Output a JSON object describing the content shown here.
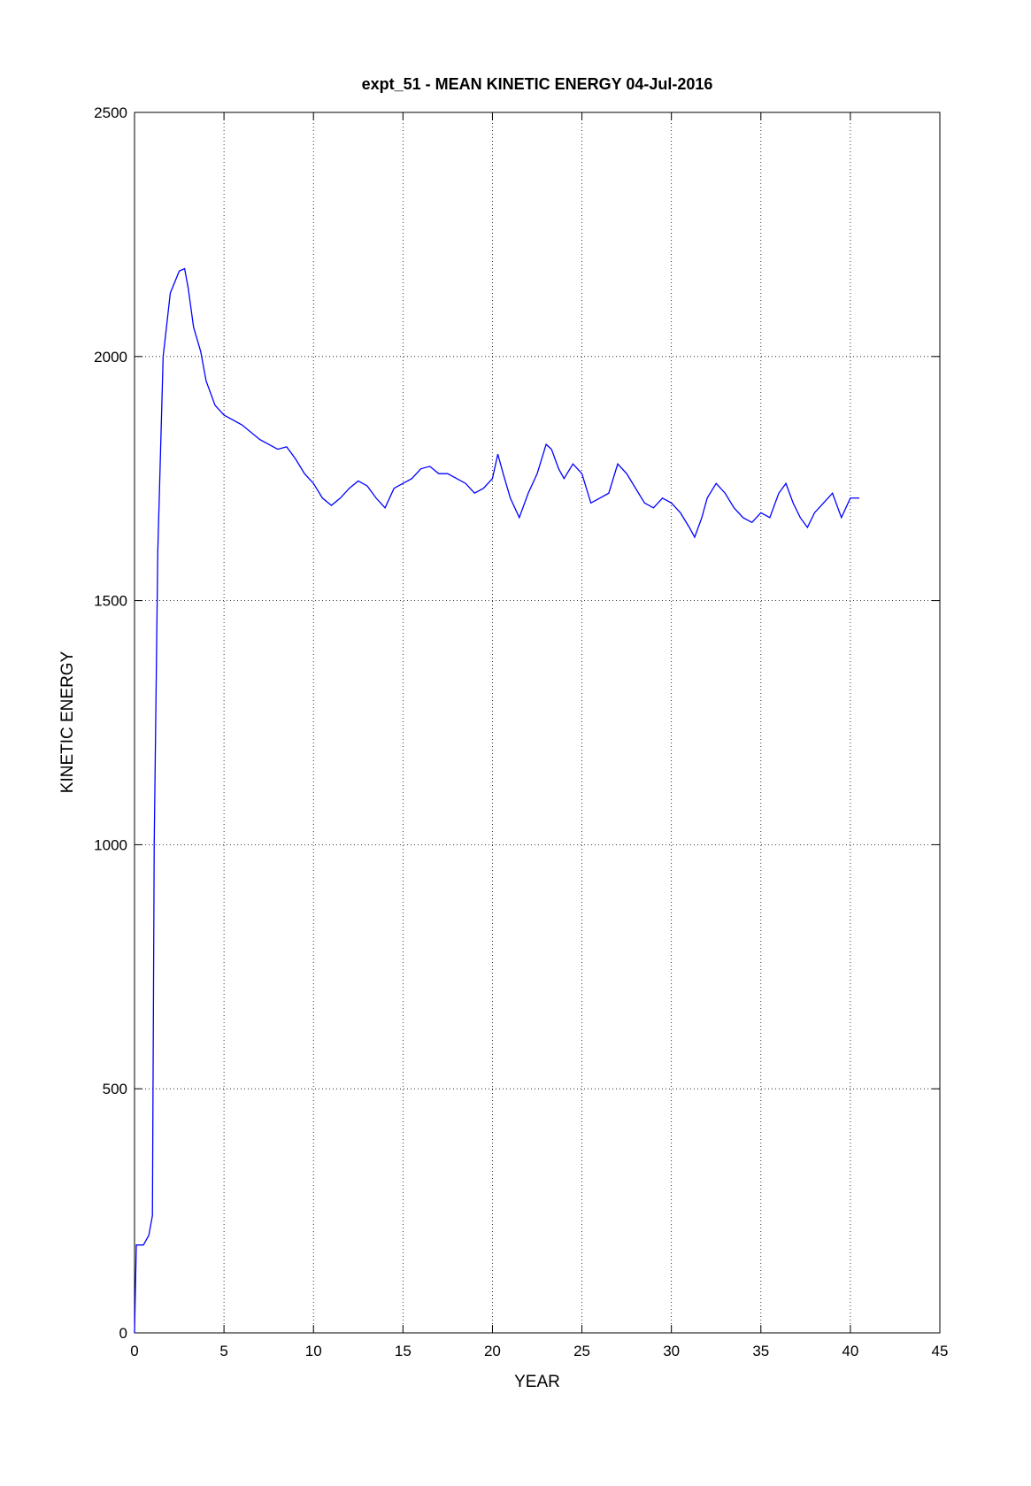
{
  "chart_data": {
    "type": "line",
    "title": "expt_51 - MEAN KINETIC ENERGY 04-Jul-2016",
    "xlabel": "YEAR",
    "ylabel": "KINETIC ENERGY",
    "x": [
      0,
      0.1,
      0.5,
      0.8,
      1.0,
      1.1,
      1.3,
      1.6,
      2.0,
      2.5,
      2.8,
      3.0,
      3.3,
      3.7,
      4.0,
      4.5,
      5,
      6,
      7,
      8,
      8.5,
      9,
      9.5,
      10,
      10.5,
      11,
      11.5,
      12,
      12.5,
      13,
      13.5,
      14,
      14.5,
      15,
      15.5,
      16,
      16.5,
      17,
      17.5,
      18,
      18.5,
      19,
      19.5,
      20,
      20.3,
      20.6,
      21,
      21.5,
      22,
      22.5,
      23,
      23.3,
      23.7,
      24,
      24.5,
      25,
      25.5,
      26,
      26.5,
      27,
      27.5,
      28,
      28.5,
      29,
      29.5,
      30,
      30.5,
      31,
      31.3,
      31.7,
      32,
      32.5,
      33,
      33.5,
      34,
      34.5,
      35,
      35.5,
      36,
      36.4,
      36.8,
      37.2,
      37.6,
      38,
      38.5,
      39,
      39.5,
      40,
      40.5
    ],
    "series": [
      {
        "name": "KINETIC ENERGY",
        "color": "#0000ff",
        "values": [
          0,
          180,
          180,
          200,
          240,
          1000,
          1600,
          2000,
          2130,
          2175,
          2180,
          2140,
          2060,
          2010,
          1950,
          1900,
          1880,
          1860,
          1830,
          1810,
          1815,
          1790,
          1760,
          1740,
          1710,
          1695,
          1710,
          1730,
          1745,
          1735,
          1710,
          1690,
          1730,
          1740,
          1750,
          1770,
          1775,
          1760,
          1760,
          1750,
          1740,
          1720,
          1730,
          1750,
          1800,
          1760,
          1710,
          1670,
          1720,
          1760,
          1820,
          1810,
          1770,
          1750,
          1780,
          1760,
          1700,
          1710,
          1720,
          1780,
          1760,
          1730,
          1700,
          1690,
          1710,
          1700,
          1680,
          1650,
          1630,
          1670,
          1710,
          1740,
          1720,
          1690,
          1670,
          1660,
          1680,
          1670,
          1720,
          1740,
          1700,
          1670,
          1650,
          1680,
          1700,
          1720,
          1670,
          1710,
          1710
        ]
      }
    ],
    "xlim": [
      0,
      45
    ],
    "xticks": [
      0,
      5,
      10,
      15,
      20,
      25,
      30,
      35,
      40,
      45
    ],
    "ylim": [
      0,
      2500
    ],
    "yticks": [
      0,
      500,
      1000,
      1500,
      2000,
      2500
    ],
    "grid": true
  }
}
